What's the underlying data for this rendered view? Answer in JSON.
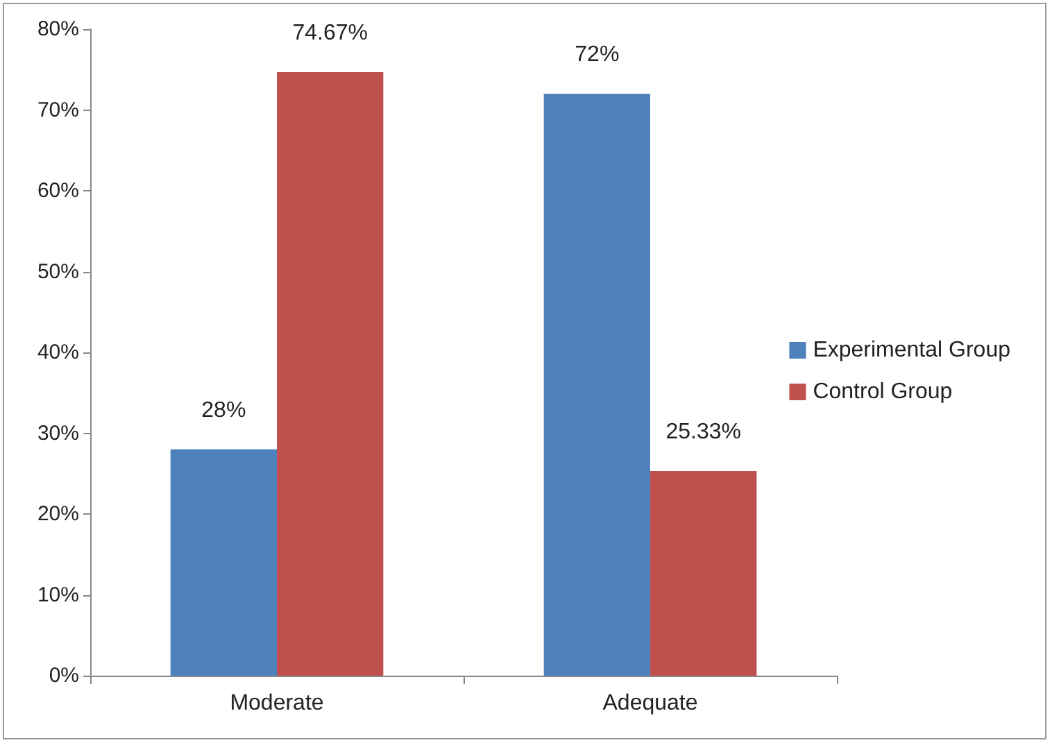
{
  "chart_data": {
    "type": "bar",
    "categories": [
      "Moderate",
      "Adequate"
    ],
    "series": [
      {
        "name": "Experimental Group",
        "color": "#4f81bd",
        "values": [
          28,
          72
        ],
        "value_labels": [
          "28%",
          "72%"
        ]
      },
      {
        "name": "Control Group",
        "color": "#c0504d",
        "values": [
          74.67,
          25.33
        ],
        "value_labels": [
          "74.67%",
          "25.33%"
        ]
      }
    ],
    "ylim": [
      0,
      80
    ],
    "yticks": [
      {
        "value": 0,
        "label": "0%"
      },
      {
        "value": 10,
        "label": "10%"
      },
      {
        "value": 20,
        "label": "20%"
      },
      {
        "value": 30,
        "label": "30%"
      },
      {
        "value": 40,
        "label": "40%"
      },
      {
        "value": 50,
        "label": "50%"
      },
      {
        "value": 60,
        "label": "60%"
      },
      {
        "value": 70,
        "label": "70%"
      },
      {
        "value": 80,
        "label": "80%"
      }
    ],
    "grid": false,
    "legend": "right"
  }
}
